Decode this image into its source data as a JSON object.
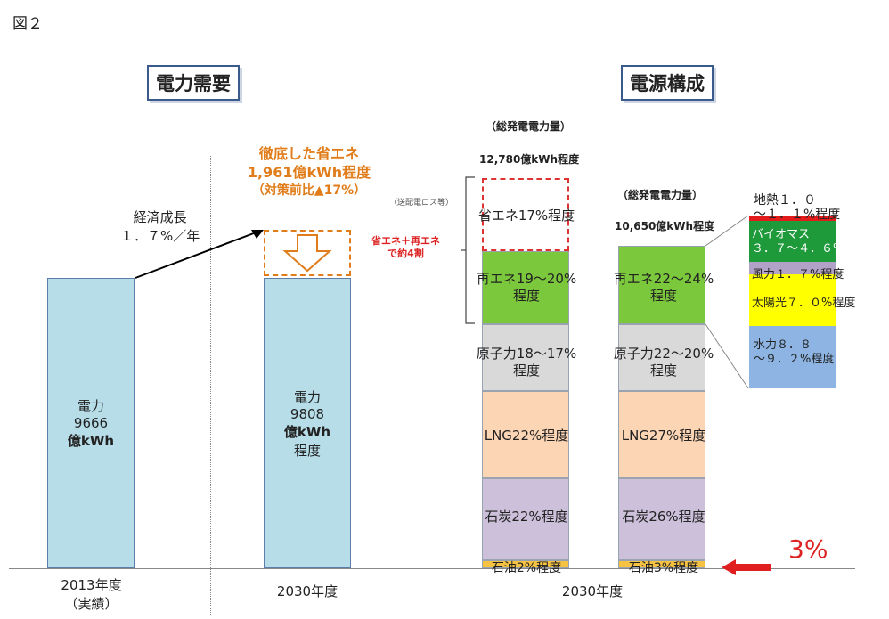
{
  "figure_label": "図２",
  "panels": {
    "demand_title": "電力需要",
    "mix_title": "電源構成"
  },
  "demand": {
    "growth_label": "経済成長\n１．７%／年",
    "bar_2013": {
      "line1": "電力",
      "line2": "9666",
      "line3": "億kWh"
    },
    "bar_2030": {
      "line1": "電力",
      "line2": "9808",
      "line3": "億kWh",
      "line4": "程度"
    },
    "saving_title_1": "徹底した省エネ",
    "saving_title_2": "1,961億kWh程度",
    "saving_title_3": "（対策前比▲17%）",
    "transmission_note": "（送配電ロス等）",
    "xlabel_2013": "2013年度\n（実績）",
    "xlabel_2030": "2030年度"
  },
  "generation": {
    "total_label_left": "（総発電電力量）",
    "total_value_left": "12,780億kWh程度",
    "total_label_right": "（総発電電力量）",
    "total_value_right": "10,650億kWh程度",
    "combined_note": "省エネ＋再エネ\nで約4割",
    "xlabel": "2030年度",
    "left_stack": {
      "savings": "省エネ17%程度",
      "renewables": "再エネ19～20%\n程度",
      "nuclear": "原子力18～17%\n程度",
      "lng": "LNG22%程度",
      "coal": "石炭22%程度",
      "oil": "石油2%程度"
    },
    "right_stack": {
      "renewables": "再エネ22～24%\n程度",
      "nuclear": "原子力22～20%\n程度",
      "lng": "LNG27%程度",
      "coal": "石炭26%程度",
      "oil": "石油3%程度"
    },
    "renewable_breakdown": {
      "geothermal": "地熱１．０\n～１．１%程度",
      "biomass": "バイオマス\n３．７～４．６%程度",
      "wind": "風力１．７%程度",
      "solar": "太陽光７．０%程度",
      "hydro": "水力８．８\n～９．２%程度"
    },
    "highlight_value": "3%"
  },
  "colors": {
    "demand_bar": "#b7dde8",
    "renewables": "#7cc83c",
    "nuclear": "#d9d9d9",
    "lng": "#fcd5b5",
    "coal": "#ccc0da",
    "oil": "#f5c242",
    "geothermal": "#e41b1b",
    "biomass": "#1f9a3a",
    "wind": "#b3a2c7",
    "solar": "#ffff00",
    "hydro": "#8db4e2",
    "accent_red": "#e02020",
    "accent_orange": "#e07d1a"
  },
  "chart_data": {
    "type": "bar",
    "title": "",
    "categories": [
      "2013年度（実績）",
      "2030年度"
    ],
    "series": [
      {
        "name": "電力",
        "values": [
          9666,
          9808
        ]
      }
    ],
    "generation_mix": [
      {
        "category": "2030年度 (12,780億kWh)",
        "components": [
          {
            "name": "省エネ",
            "value": "17%"
          },
          {
            "name": "再エネ",
            "value": "19～20%"
          },
          {
            "name": "原子力",
            "value": "18～17%"
          },
          {
            "name": "LNG",
            "value": "22%"
          },
          {
            "name": "石炭",
            "value": "22%"
          },
          {
            "name": "石油",
            "value": "2%"
          }
        ]
      },
      {
        "category": "2030年度 (10,650億kWh)",
        "components": [
          {
            "name": "再エネ",
            "value": "22～24%"
          },
          {
            "name": "原子力",
            "value": "22～20%"
          },
          {
            "name": "LNG",
            "value": "27%"
          },
          {
            "name": "石炭",
            "value": "26%"
          },
          {
            "name": "石油",
            "value": "3%"
          }
        ]
      }
    ],
    "renewable_breakdown": [
      {
        "name": "地熱",
        "value": "1.0～1.1%"
      },
      {
        "name": "バイオマス",
        "value": "3.7～4.6%"
      },
      {
        "name": "風力",
        "value": "1.7%"
      },
      {
        "name": "太陽光",
        "value": "7.0%"
      },
      {
        "name": "水力",
        "value": "8.8～9.2%"
      }
    ]
  }
}
